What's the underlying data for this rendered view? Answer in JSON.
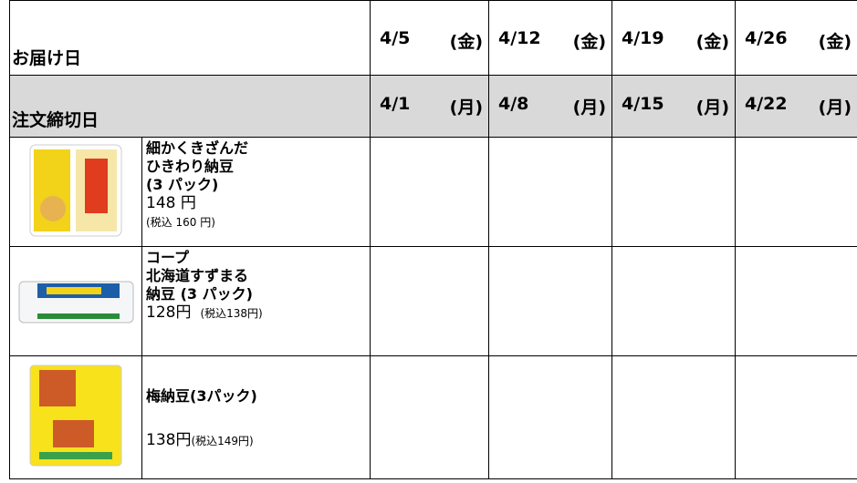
{
  "header": {
    "delivery_label": "お届け日",
    "deadline_label": "注文締切日",
    "delivery_dates": [
      {
        "date": "4/5",
        "weekday": "(金)"
      },
      {
        "date": "4/12",
        "weekday": "(金)"
      },
      {
        "date": "4/19",
        "weekday": "(金)"
      },
      {
        "date": "4/26",
        "weekday": "(金)"
      }
    ],
    "deadline_dates": [
      {
        "date": "4/1",
        "weekday": "(月)"
      },
      {
        "date": "4/8",
        "weekday": "(月)"
      },
      {
        "date": "4/15",
        "weekday": "(月)"
      },
      {
        "date": "4/22",
        "weekday": "(月)"
      }
    ]
  },
  "products": [
    {
      "name_lines": [
        "細かくきざんだ",
        "ひきわり納豆",
        "(3 パック)"
      ],
      "price": "148 円",
      "tax_price": "(税込 160 円)"
    },
    {
      "name_lines": [
        "コープ",
        "北海道すずまる",
        "納豆 (3 パック)"
      ],
      "price": "128円",
      "tax_price": "(税込138円)"
    },
    {
      "name_lines": [
        "梅納豆(3パック)"
      ],
      "price": "138円",
      "tax_price": "(税込149円)"
    }
  ]
}
